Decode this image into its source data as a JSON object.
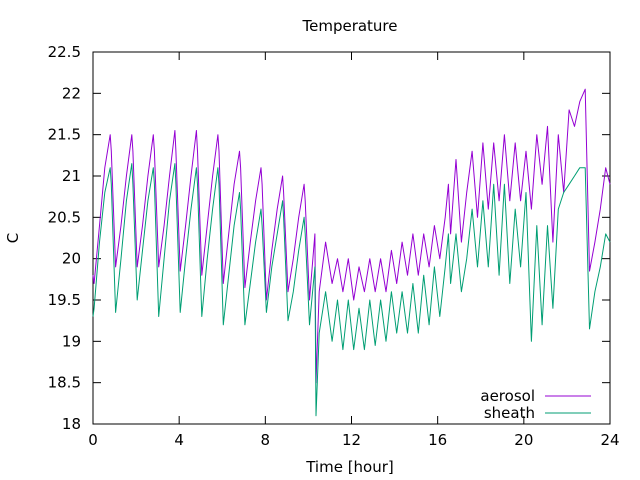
{
  "chart_data": {
    "type": "line",
    "title": "Temperature",
    "xlabel": "Time [hour]",
    "ylabel": "C",
    "xlim": [
      0,
      24
    ],
    "ylim": [
      18,
      22.5
    ],
    "xticks": [
      0,
      4,
      8,
      12,
      16,
      20,
      24
    ],
    "yticks": [
      18,
      18.5,
      19,
      19.5,
      20,
      20.5,
      21,
      21.5,
      22,
      22.5
    ],
    "grid": false,
    "legend_position": "bottom-right",
    "series": [
      {
        "name": "aerosol",
        "color": "#9400d3",
        "x": [
          0,
          0.05,
          0.3,
          0.55,
          0.8,
          0.85,
          1.05,
          1.3,
          1.55,
          1.8,
          1.85,
          2.05,
          2.3,
          2.55,
          2.8,
          2.85,
          3.05,
          3.3,
          3.55,
          3.8,
          3.85,
          4.05,
          4.3,
          4.55,
          4.8,
          4.85,
          5.05,
          5.3,
          5.55,
          5.8,
          5.85,
          6.05,
          6.3,
          6.55,
          6.8,
          6.85,
          7.05,
          7.3,
          7.55,
          7.8,
          7.85,
          8.05,
          8.3,
          8.55,
          8.8,
          8.85,
          9.05,
          9.3,
          9.55,
          9.8,
          9.85,
          10.05,
          10.3,
          10.35,
          10.5,
          10.8,
          11.1,
          11.35,
          11.6,
          11.85,
          12.1,
          12.35,
          12.6,
          12.85,
          13.1,
          13.35,
          13.6,
          13.85,
          14.1,
          14.35,
          14.6,
          14.85,
          15.1,
          15.35,
          15.6,
          15.85,
          16.1,
          16.35,
          16.5,
          16.6,
          16.85,
          17.1,
          17.35,
          17.6,
          17.85,
          18.1,
          18.35,
          18.6,
          18.85,
          19.1,
          19.35,
          19.6,
          19.85,
          20.1,
          20.35,
          20.6,
          20.85,
          21.1,
          21.35,
          21.6,
          21.85,
          22.1,
          22.35,
          22.6,
          22.85,
          23.05,
          23.3,
          23.55,
          23.8,
          24
        ],
        "values": [
          19.8,
          19.7,
          20.4,
          21.1,
          21.5,
          21.3,
          19.9,
          20.4,
          21.0,
          21.5,
          21.3,
          19.9,
          20.4,
          21.0,
          21.5,
          21.3,
          19.9,
          20.4,
          21.0,
          21.55,
          21.3,
          19.85,
          20.4,
          21.0,
          21.55,
          21.3,
          19.8,
          20.4,
          21.0,
          21.5,
          21.3,
          19.7,
          20.3,
          20.9,
          21.3,
          21.1,
          19.65,
          20.2,
          20.7,
          21.1,
          20.9,
          19.5,
          20.1,
          20.6,
          21.0,
          20.8,
          19.6,
          20.0,
          20.5,
          20.9,
          20.7,
          19.5,
          20.3,
          18.5,
          19.6,
          20.2,
          19.7,
          20.0,
          19.6,
          20.0,
          19.5,
          19.9,
          19.6,
          20.0,
          19.6,
          20.0,
          19.6,
          20.1,
          19.7,
          20.2,
          19.8,
          20.3,
          19.8,
          20.3,
          19.9,
          20.4,
          20.0,
          20.5,
          20.9,
          20.3,
          21.2,
          20.2,
          20.8,
          21.3,
          20.5,
          21.4,
          20.6,
          21.4,
          20.7,
          21.5,
          20.7,
          21.4,
          20.7,
          21.3,
          20.6,
          21.5,
          20.9,
          21.6,
          20.2,
          21.5,
          20.8,
          21.8,
          21.6,
          21.9,
          22.05,
          19.85,
          20.2,
          20.6,
          21.1,
          20.9
        ]
      },
      {
        "name": "sheath",
        "color": "#009e73",
        "x": [
          0,
          0.05,
          0.3,
          0.55,
          0.8,
          0.85,
          1.05,
          1.3,
          1.55,
          1.8,
          1.85,
          2.05,
          2.3,
          2.55,
          2.8,
          2.85,
          3.05,
          3.3,
          3.55,
          3.8,
          3.85,
          4.05,
          4.3,
          4.55,
          4.8,
          4.85,
          5.05,
          5.3,
          5.55,
          5.8,
          5.85,
          6.05,
          6.3,
          6.55,
          6.8,
          6.85,
          7.05,
          7.3,
          7.55,
          7.8,
          7.85,
          8.05,
          8.3,
          8.55,
          8.8,
          8.85,
          9.05,
          9.3,
          9.55,
          9.8,
          9.85,
          10.05,
          10.3,
          10.35,
          10.5,
          10.8,
          11.1,
          11.35,
          11.6,
          11.85,
          12.1,
          12.35,
          12.6,
          12.85,
          13.1,
          13.35,
          13.6,
          13.85,
          14.1,
          14.35,
          14.6,
          14.85,
          15.1,
          15.35,
          15.6,
          15.85,
          16.1,
          16.35,
          16.5,
          16.6,
          16.85,
          17.1,
          17.35,
          17.6,
          17.85,
          18.1,
          18.35,
          18.6,
          18.85,
          19.1,
          19.35,
          19.6,
          19.85,
          20.1,
          20.35,
          20.6,
          20.85,
          21.1,
          21.35,
          21.6,
          21.85,
          22.1,
          22.35,
          22.6,
          22.85,
          23.05,
          23.3,
          23.55,
          23.8,
          24
        ],
        "values": [
          19.3,
          19.4,
          20.2,
          20.8,
          21.1,
          20.9,
          19.35,
          20.0,
          20.7,
          21.15,
          20.9,
          19.5,
          20.1,
          20.7,
          21.1,
          20.9,
          19.3,
          20.0,
          20.7,
          21.15,
          20.9,
          19.35,
          20.0,
          20.6,
          21.1,
          20.9,
          19.3,
          20.0,
          20.6,
          21.1,
          20.9,
          19.2,
          19.8,
          20.4,
          20.8,
          20.6,
          19.2,
          19.7,
          20.2,
          20.6,
          20.4,
          19.35,
          19.9,
          20.3,
          20.7,
          20.5,
          19.25,
          19.6,
          20.1,
          20.5,
          20.3,
          19.2,
          19.9,
          18.1,
          19.1,
          19.6,
          19.0,
          19.5,
          18.9,
          19.5,
          18.9,
          19.4,
          18.9,
          19.5,
          18.95,
          19.5,
          19.0,
          19.6,
          19.1,
          19.6,
          19.1,
          19.7,
          19.1,
          19.8,
          19.2,
          19.9,
          19.3,
          19.9,
          20.3,
          19.7,
          20.3,
          19.6,
          20.0,
          20.6,
          19.9,
          20.7,
          19.9,
          20.9,
          19.8,
          20.9,
          19.7,
          20.6,
          19.9,
          20.8,
          19.0,
          20.4,
          19.2,
          20.4,
          19.4,
          20.6,
          20.8,
          20.9,
          21.0,
          21.1,
          21.1,
          19.15,
          19.6,
          19.9,
          20.3,
          20.2
        ]
      }
    ]
  }
}
